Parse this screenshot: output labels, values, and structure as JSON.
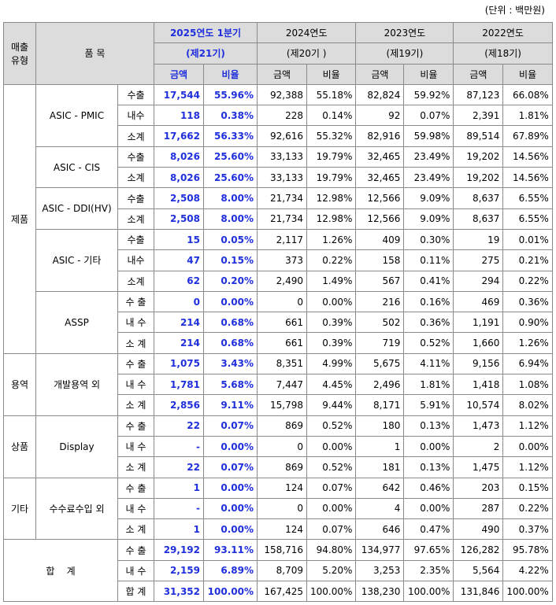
{
  "unit_note": "(단위 : 백만원)",
  "header": {
    "sales_type": "매출\n유형",
    "item": "품 목",
    "periods": [
      {
        "year": "2025연도 1분기",
        "term": "(제21기)"
      },
      {
        "year": "2024연도",
        "term": "(제20기 )"
      },
      {
        "year": "2023연도",
        "term": "(제19기)"
      },
      {
        "year": "2022연도",
        "term": "(제18기)"
      }
    ],
    "amount": "금액",
    "ratio": "비율"
  },
  "groups": [
    {
      "type": "제품",
      "products": [
        {
          "name": "ASIC - PMIC",
          "rows": [
            {
              "kind": "수출",
              "v": [
                "17,544",
                "55.96%",
                "92,388",
                "55.18%",
                "82,824",
                "59.92%",
                "87,123",
                "66.08%"
              ]
            },
            {
              "kind": "내수",
              "v": [
                "118",
                "0.38%",
                "228",
                "0.14%",
                "92",
                "0.07%",
                "2,391",
                "1.81%"
              ]
            },
            {
              "kind": "소계",
              "v": [
                "17,662",
                "56.33%",
                "92,616",
                "55.32%",
                "82,916",
                "59.98%",
                "89,514",
                "67.89%"
              ]
            }
          ]
        },
        {
          "name": "ASIC - CIS",
          "rows": [
            {
              "kind": "수출",
              "v": [
                "8,026",
                "25.60%",
                "33,133",
                "19.79%",
                "32,465",
                "23.49%",
                "19,202",
                "14.56%"
              ]
            },
            {
              "kind": "소계",
              "v": [
                "8,026",
                "25.60%",
                "33,133",
                "19.79%",
                "32,465",
                "23.49%",
                "19,202",
                "14.56%"
              ]
            }
          ]
        },
        {
          "name": "ASIC - DDI(HV)",
          "rows": [
            {
              "kind": "수출",
              "v": [
                "2,508",
                "8.00%",
                "21,734",
                "12.98%",
                "12,566",
                "9.09%",
                "8,637",
                "6.55%"
              ]
            },
            {
              "kind": "소계",
              "v": [
                "2,508",
                "8.00%",
                "21,734",
                "12.98%",
                "12,566",
                "9.09%",
                "8,637",
                "6.55%"
              ]
            }
          ]
        },
        {
          "name": "ASIC - 기타",
          "rows": [
            {
              "kind": "수출",
              "v": [
                "15",
                "0.05%",
                "2,117",
                "1.26%",
                "409",
                "0.30%",
                "19",
                "0.01%"
              ]
            },
            {
              "kind": "내수",
              "v": [
                "47",
                "0.15%",
                "373",
                "0.22%",
                "158",
                "0.11%",
                "275",
                "0.21%"
              ]
            },
            {
              "kind": "소계",
              "v": [
                "62",
                "0.20%",
                "2,490",
                "1.49%",
                "567",
                "0.41%",
                "294",
                "0.22%"
              ]
            }
          ]
        },
        {
          "name": "ASSP",
          "rows": [
            {
              "kind": "수 출",
              "v": [
                "0",
                "0.00%",
                "0",
                "0.00%",
                "216",
                "0.16%",
                "469",
                "0.36%"
              ]
            },
            {
              "kind": "내 수",
              "v": [
                "214",
                "0.68%",
                "661",
                "0.39%",
                "502",
                "0.36%",
                "1,191",
                "0.90%"
              ]
            },
            {
              "kind": "소 계",
              "v": [
                "214",
                "0.68%",
                "661",
                "0.39%",
                "719",
                "0.52%",
                "1,660",
                "1.26%"
              ]
            }
          ]
        }
      ]
    },
    {
      "type": "용역",
      "products": [
        {
          "name": "개발용역 외",
          "rows": [
            {
              "kind": "수 출",
              "v": [
                "1,075",
                "3.43%",
                "8,351",
                "4.99%",
                "5,675",
                "4.11%",
                "9,156",
                "6.94%"
              ]
            },
            {
              "kind": "내 수",
              "v": [
                "1,781",
                "5.68%",
                "7,447",
                "4.45%",
                "2,496",
                "1.81%",
                "1,418",
                "1.08%"
              ]
            },
            {
              "kind": "소 계",
              "v": [
                "2,856",
                "9.11%",
                "15,798",
                "9.44%",
                "8,171",
                "5.91%",
                "10,574",
                "8.02%"
              ]
            }
          ]
        }
      ]
    },
    {
      "type": "상품",
      "products": [
        {
          "name": "Display",
          "rows": [
            {
              "kind": "수 출",
              "v": [
                "22",
                "0.07%",
                "869",
                "0.52%",
                "180",
                "0.13%",
                "1,473",
                "1.12%"
              ]
            },
            {
              "kind": "내 수",
              "v": [
                "-",
                "0.00%",
                "0",
                "0.00%",
                "1",
                "0.00%",
                "2",
                "0.00%"
              ]
            },
            {
              "kind": "소 계",
              "v": [
                "22",
                "0.07%",
                "869",
                "0.52%",
                "181",
                "0.13%",
                "1,475",
                "1.12%"
              ]
            }
          ]
        }
      ]
    },
    {
      "type": "기타",
      "products": [
        {
          "name": "수수료수입 외",
          "rows": [
            {
              "kind": "수 출",
              "v": [
                "1",
                "0.00%",
                "124",
                "0.07%",
                "642",
                "0.46%",
                "203",
                "0.15%"
              ]
            },
            {
              "kind": "내 수",
              "v": [
                "-",
                "0.00%",
                "0",
                "0.00%",
                "4",
                "0.00%",
                "287",
                "0.22%"
              ]
            },
            {
              "kind": "소 계",
              "v": [
                "1",
                "0.00%",
                "124",
                "0.07%",
                "646",
                "0.47%",
                "490",
                "0.37%"
              ]
            }
          ]
        }
      ]
    }
  ],
  "total": {
    "label": "합    계",
    "rows": [
      {
        "kind": "수 출",
        "v": [
          "29,192",
          "93.11%",
          "158,716",
          "94.80%",
          "134,977",
          "97.65%",
          "126,282",
          "95.78%"
        ]
      },
      {
        "kind": "내 수",
        "v": [
          "2,159",
          "6.89%",
          "8,709",
          "5.20%",
          "3,253",
          "2.35%",
          "5,564",
          "4.22%"
        ]
      },
      {
        "kind": "합 계",
        "v": [
          "31,352",
          "100.00%",
          "167,425",
          "100.00%",
          "138,230",
          "100.00%",
          "131,846",
          "100.00%"
        ]
      }
    ]
  },
  "colors": {
    "highlight_text": "#1f2fdc",
    "header_bg": "#dcdcdc",
    "border": "#8a8a8a"
  }
}
